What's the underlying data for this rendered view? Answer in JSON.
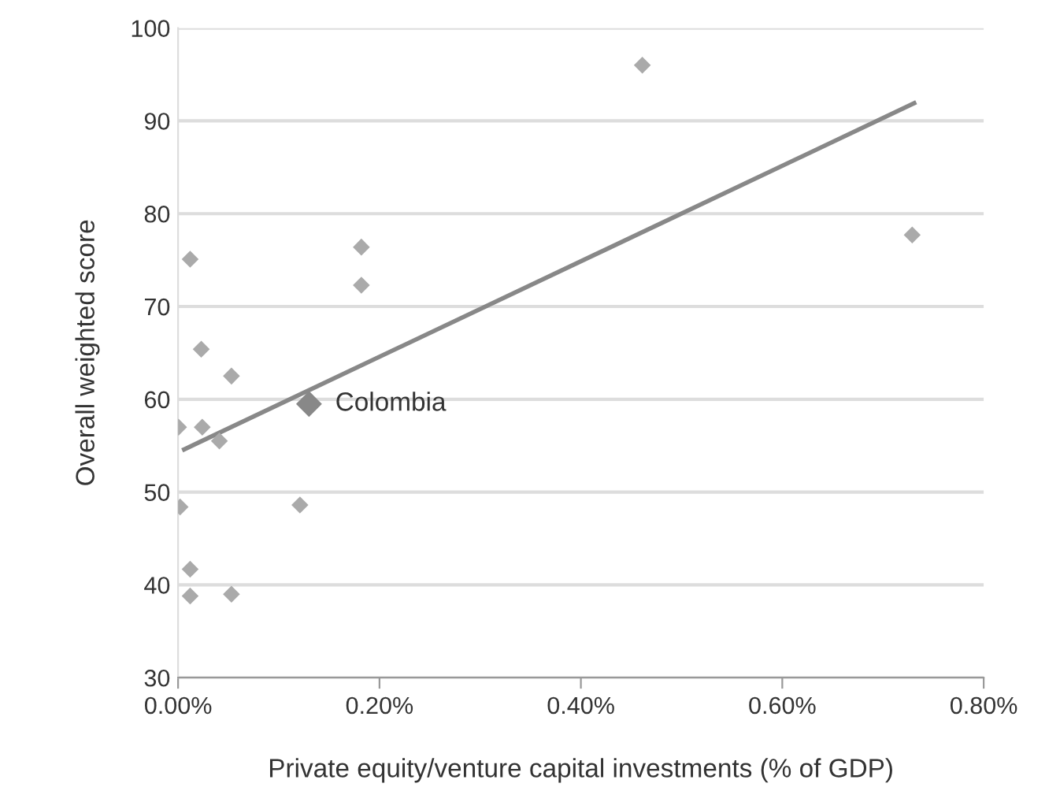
{
  "chart_data": {
    "type": "scatter",
    "xlabel": "Private equity/venture capital investments (% of GDP)",
    "ylabel": "Overall weighted score",
    "series": [
      {
        "color": "#aaaaaa",
        "marker": "diamond",
        "x": [
          0.012,
          0.182,
          0.182,
          0.023,
          0.053,
          0.0005,
          0.024,
          0.041,
          0.002,
          0.121,
          0.012,
          0.012,
          0.053,
          0.461,
          0.729
        ],
        "values": [
          75.1,
          76.4,
          72.3,
          65.4,
          62.5,
          57.0,
          57.0,
          55.5,
          48.4,
          48.6,
          41.7,
          38.8,
          39.0,
          96.0,
          77.7
        ]
      },
      {
        "color": "#888888",
        "marker": "diamond",
        "x": [
          0.13
        ],
        "values": [
          59.5
        ]
      },
      {
        "type": "line",
        "color": "#888888",
        "marker": "none",
        "x": [
          0.006,
          0.731
        ],
        "values": [
          54.6,
          91.9
        ]
      }
    ],
    "annotations": [
      {
        "text": "Colombia",
        "x": 0.13,
        "y": 59.5
      }
    ],
    "xlim": [
      0,
      0.8
    ],
    "ylim": [
      30,
      100
    ],
    "xticks": [
      {
        "value": 0,
        "label": "0.00%"
      },
      {
        "value": 0.2,
        "label": "0.20%"
      },
      {
        "value": 0.4,
        "label": "0.40%"
      },
      {
        "value": 0.6,
        "label": "0.60%"
      },
      {
        "value": 0.8,
        "label": "0.80%"
      }
    ],
    "yticks": [
      30,
      40,
      50,
      60,
      70,
      80,
      90,
      100
    ],
    "grid": "y",
    "legend": false
  }
}
